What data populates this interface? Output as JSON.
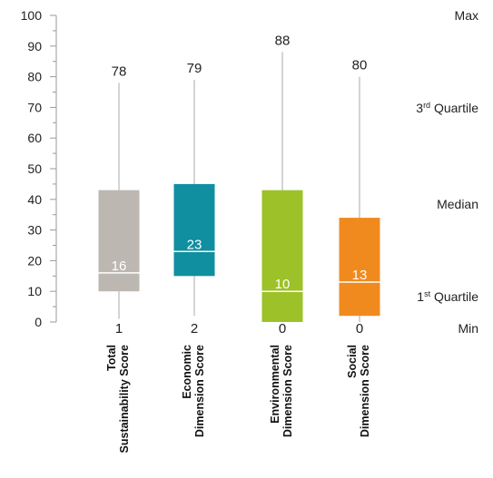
{
  "chart_data": {
    "type": "boxplot",
    "ylim": [
      0,
      100
    ],
    "yticks": [
      0,
      10,
      20,
      30,
      40,
      50,
      60,
      70,
      80,
      90,
      100
    ],
    "categories": [
      {
        "lines": [
          "Total",
          "Sustainability Score"
        ],
        "color": "#bdb7b1",
        "min": 1,
        "q1": 10,
        "median": 16,
        "q3": 43,
        "max": 78
      },
      {
        "lines": [
          "Economic",
          "Dimension Score"
        ],
        "color": "#0f8fa0",
        "min": 2,
        "q1": 15,
        "median": 23,
        "q3": 45,
        "max": 79
      },
      {
        "lines": [
          "Environmental",
          "Dimension Score"
        ],
        "color": "#9dc128",
        "min": 0,
        "q1": 0,
        "median": 10,
        "q3": 43,
        "max": 88
      },
      {
        "lines": [
          "Social",
          "Dimension Score"
        ],
        "color": "#f08a1e",
        "min": 0,
        "q1": 2,
        "median": 13,
        "q3": 34,
        "max": 80
      }
    ],
    "legend": [
      {
        "id": "max",
        "label": "Max",
        "sup": "",
        "rest": "",
        "value": 100
      },
      {
        "id": "q3",
        "label": "3",
        "sup": "rd",
        "rest": " Quartile",
        "value": 70
      },
      {
        "id": "median",
        "label": "Median",
        "sup": "",
        "rest": "",
        "value": 40
      },
      {
        "id": "q1",
        "label": "1",
        "sup": "st",
        "rest": " Quartile",
        "value": 10
      },
      {
        "id": "min",
        "label": "Min",
        "sup": "",
        "rest": "",
        "value": 0
      }
    ]
  }
}
